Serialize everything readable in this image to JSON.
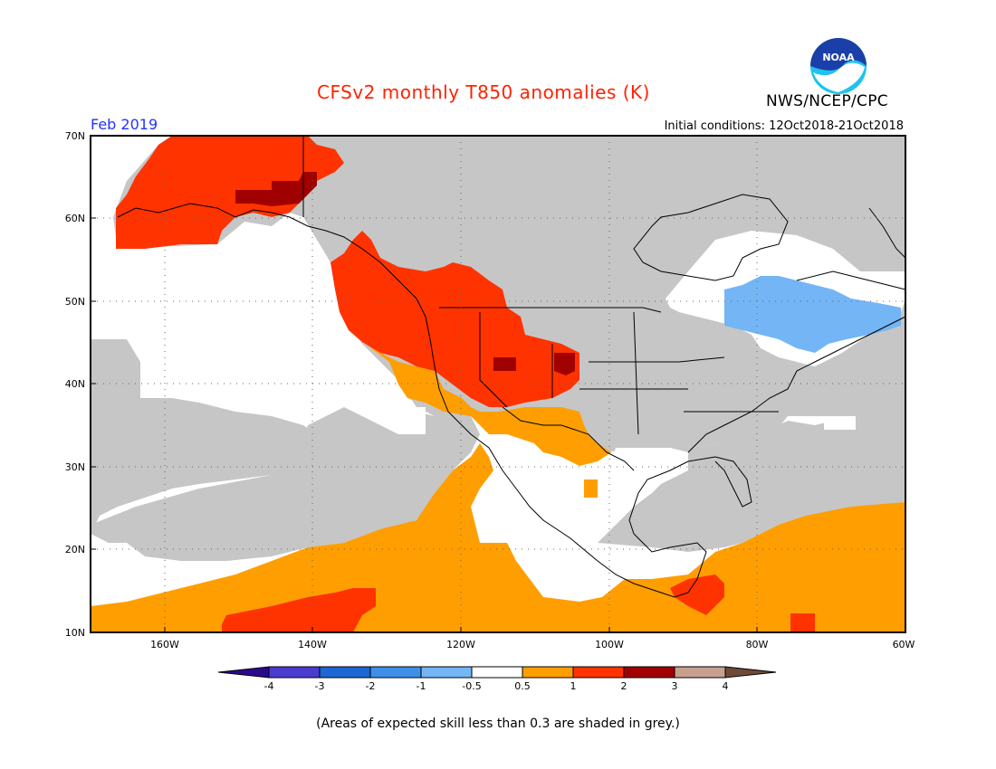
{
  "title": "CFSv2 monthly T850 anomalies (K)",
  "agency": "NWS/NCEP/CPC",
  "logo_text": "NOAA",
  "period": "Feb 2019",
  "initial_conditions": "Initial conditions: 12Oct2018-21Oct2018",
  "footer": "(Areas of expected skill less than 0.3 are shaded in grey.)",
  "map": {
    "lat_range": [
      10,
      70
    ],
    "lon_range": [
      -170,
      -60
    ],
    "lat_labels": [
      "70N",
      "60N",
      "50N",
      "40N",
      "30N",
      "20N",
      "10N"
    ],
    "lon_labels": [
      "160W",
      "140W",
      "120W",
      "100W",
      "80W",
      "60W"
    ]
  },
  "colorbar": {
    "labels": [
      "-4",
      "-3",
      "-2",
      "-1",
      "-0.5",
      "0.5",
      "1",
      "2",
      "3",
      "4"
    ],
    "colors": [
      "#2a0a8c",
      "#4a3ccf",
      "#1d67d4",
      "#3f8fe8",
      "#74b5f5",
      "#ffffff",
      "#ff9e00",
      "#ff3300",
      "#a10000",
      "#c8a090",
      "#6e4a3a"
    ]
  },
  "colors": {
    "grey": "#c6c6c6",
    "light_blue": "#74b5f5",
    "orange": "#ff9e00",
    "red": "#ff3300",
    "dark_red": "#a10000"
  }
}
